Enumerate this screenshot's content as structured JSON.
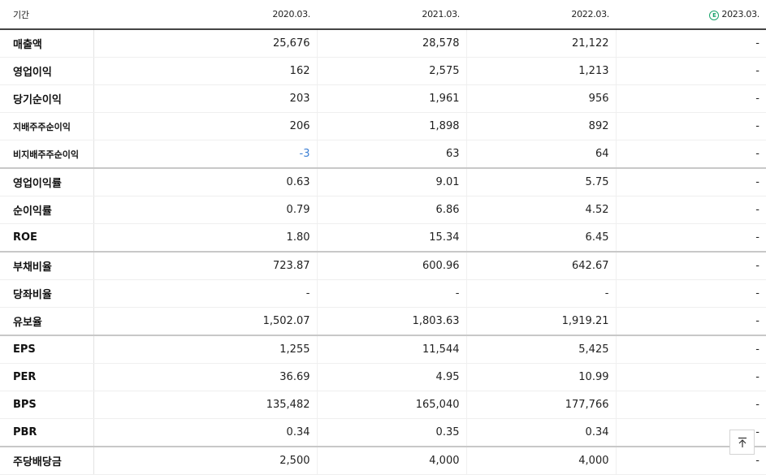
{
  "header": {
    "label": "기간",
    "periods": [
      "2020.03.",
      "2021.03.",
      "2022.03.",
      "2023.03."
    ],
    "estimate_marker": "E"
  },
  "rows": [
    {
      "label": "매출액",
      "values": [
        "25,676",
        "28,578",
        "21,122",
        "-"
      ]
    },
    {
      "label": "영업이익",
      "values": [
        "162",
        "2,575",
        "1,213",
        "-"
      ]
    },
    {
      "label": "당기순이익",
      "values": [
        "203",
        "1,961",
        "956",
        "-"
      ]
    },
    {
      "label": "지배주주순이익",
      "values": [
        "206",
        "1,898",
        "892",
        "-"
      ]
    },
    {
      "label": "비지배주주순이익",
      "values": [
        "-3",
        "63",
        "64",
        "-"
      ]
    },
    {
      "label": "영업이익률",
      "values": [
        "0.63",
        "9.01",
        "5.75",
        "-"
      ]
    },
    {
      "label": "순이익률",
      "values": [
        "0.79",
        "6.86",
        "4.52",
        "-"
      ]
    },
    {
      "label": "ROE",
      "values": [
        "1.80",
        "15.34",
        "6.45",
        "-"
      ]
    },
    {
      "label": "부채비율",
      "values": [
        "723.87",
        "600.96",
        "642.67",
        "-"
      ]
    },
    {
      "label": "당좌비율",
      "values": [
        "-",
        "-",
        "-",
        "-"
      ]
    },
    {
      "label": "유보율",
      "values": [
        "1,502.07",
        "1,803.63",
        "1,919.21",
        "-"
      ]
    },
    {
      "label": "EPS",
      "values": [
        "1,255",
        "11,544",
        "5,425",
        "-"
      ]
    },
    {
      "label": "PER",
      "values": [
        "36.69",
        "4.95",
        "10.99",
        "-"
      ]
    },
    {
      "label": "BPS",
      "values": [
        "135,482",
        "165,040",
        "177,766",
        "-"
      ]
    },
    {
      "label": "PBR",
      "values": [
        "0.34",
        "0.35",
        "0.34",
        "-"
      ]
    },
    {
      "label": "주당배당금",
      "values": [
        "2,500",
        "4,000",
        "4,000",
        "-"
      ]
    }
  ],
  "colors": {
    "negative": "#3b7fd4",
    "estimate": "#1aa36b"
  },
  "scroll_top_button": {
    "icon": "arrow-up-to-top-icon"
  }
}
